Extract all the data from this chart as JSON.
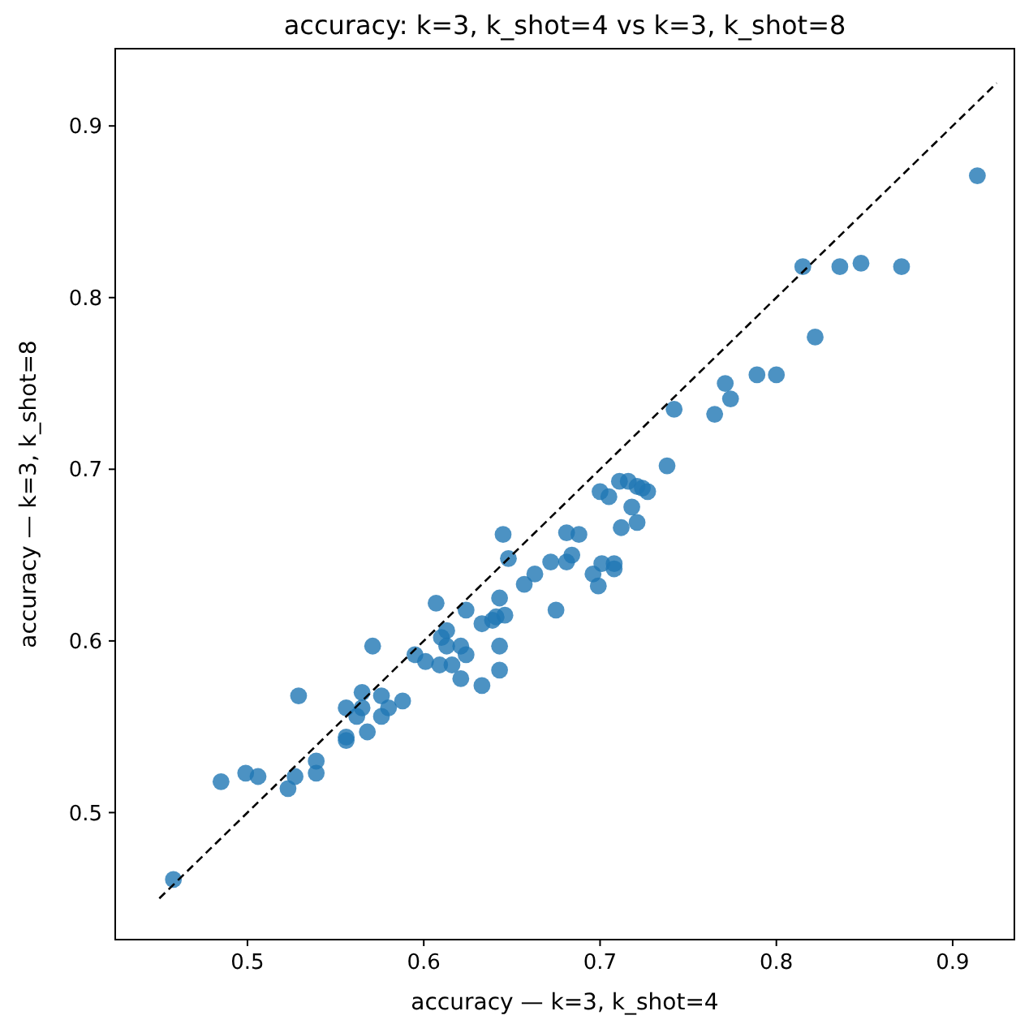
{
  "chart_data": {
    "type": "scatter",
    "title": "accuracy: k=3, k_shot=4 vs k=3, k_shot=8",
    "xlabel": "accuracy — k=3, k_shot=4",
    "ylabel": "accuracy — k=3, k_shot=8",
    "xlim": [
      0.425,
      0.935
    ],
    "ylim": [
      0.426,
      0.945
    ],
    "xticks": [
      0.5,
      0.6,
      0.7,
      0.8,
      0.9
    ],
    "yticks": [
      0.5,
      0.6,
      0.7,
      0.8,
      0.9
    ],
    "grid": false,
    "series": [
      {
        "marker": "circle",
        "color": "#1f77b4",
        "x": [
          0.458,
          0.485,
          0.499,
          0.506,
          0.523,
          0.527,
          0.539,
          0.539,
          0.529,
          0.556,
          0.556,
          0.556,
          0.565,
          0.565,
          0.562,
          0.568,
          0.576,
          0.58,
          0.576,
          0.588,
          0.571,
          0.595,
          0.601,
          0.609,
          0.616,
          0.61,
          0.613,
          0.613,
          0.621,
          0.624,
          0.621,
          0.633,
          0.643,
          0.643,
          0.633,
          0.639,
          0.641,
          0.646,
          0.643,
          0.607,
          0.624,
          0.648,
          0.645,
          0.657,
          0.663,
          0.672,
          0.681,
          0.684,
          0.688,
          0.696,
          0.699,
          0.681,
          0.701,
          0.708,
          0.708,
          0.675,
          0.7,
          0.705,
          0.711,
          0.716,
          0.721,
          0.724,
          0.727,
          0.718,
          0.712,
          0.721,
          0.738,
          0.742,
          0.765,
          0.771,
          0.774,
          0.789,
          0.8,
          0.822,
          0.815,
          0.836,
          0.848,
          0.871,
          0.914
        ],
        "values": [
          0.461,
          0.518,
          0.523,
          0.521,
          0.514,
          0.521,
          0.53,
          0.523,
          0.568,
          0.561,
          0.544,
          0.542,
          0.57,
          0.561,
          0.556,
          0.547,
          0.568,
          0.561,
          0.556,
          0.565,
          0.597,
          0.592,
          0.588,
          0.586,
          0.586,
          0.602,
          0.606,
          0.597,
          0.597,
          0.592,
          0.578,
          0.574,
          0.583,
          0.597,
          0.61,
          0.612,
          0.614,
          0.615,
          0.625,
          0.622,
          0.618,
          0.648,
          0.662,
          0.633,
          0.639,
          0.646,
          0.646,
          0.65,
          0.662,
          0.639,
          0.632,
          0.663,
          0.645,
          0.645,
          0.642,
          0.618,
          0.687,
          0.684,
          0.693,
          0.693,
          0.69,
          0.689,
          0.687,
          0.678,
          0.666,
          0.669,
          0.702,
          0.735,
          0.732,
          0.75,
          0.741,
          0.755,
          0.755,
          0.777,
          0.818,
          0.818,
          0.82,
          0.818,
          0.871
        ]
      },
      {
        "type": "line",
        "marker": "none",
        "line_style": "dashed",
        "color": "#000000",
        "x": [
          0.45,
          0.925
        ],
        "values": [
          0.45,
          0.925
        ]
      }
    ]
  }
}
